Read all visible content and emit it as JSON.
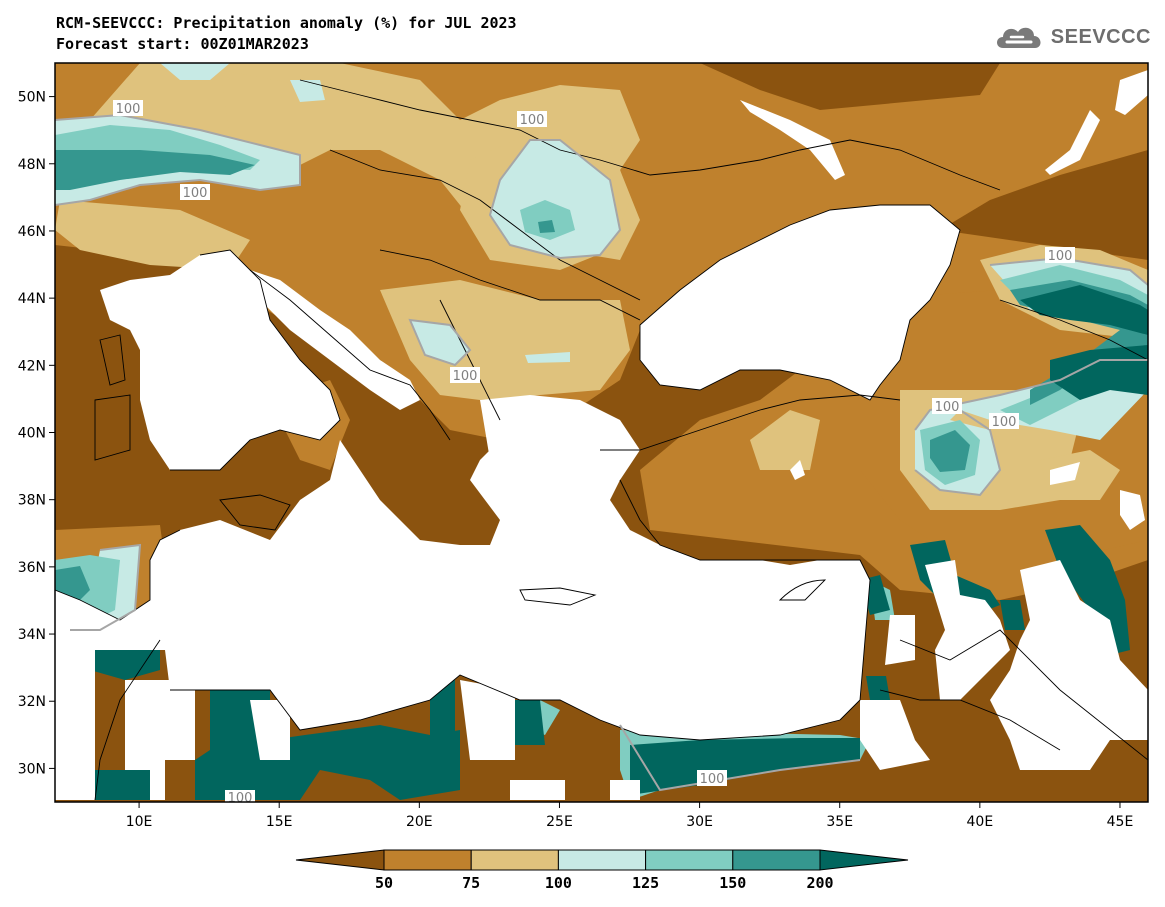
{
  "header": {
    "title": "RCM-SEEVCCC: Precipitation anomaly (%) for JUL 2023",
    "subtitle": "Forecast start: 00Z01MAR2023",
    "logo_text": "SEEVCCC",
    "logo_icon": "cloud-icon"
  },
  "chart_data": {
    "type": "heatmap",
    "variable": "Precipitation anomaly (%)",
    "lon_range": [
      7,
      46
    ],
    "lat_range": [
      29,
      51
    ],
    "lon_ticks": [
      "10E",
      "15E",
      "20E",
      "25E",
      "30E",
      "35E",
      "40E",
      "45E"
    ],
    "lat_ticks": [
      "50N",
      "48N",
      "46N",
      "44N",
      "42N",
      "40N",
      "38N",
      "36N",
      "34N",
      "32N",
      "30N"
    ],
    "contour_labels": [
      "100",
      "100",
      "100",
      "100",
      "100",
      "100",
      "100",
      "100",
      "100"
    ],
    "colorbar": {
      "labels": [
        "50",
        "75",
        "100",
        "125",
        "150",
        "200"
      ],
      "colors": [
        "#8b530f",
        "#bf812d",
        "#dfc27d",
        "#c7eae5",
        "#80cdc1",
        "#35978f",
        "#01665e"
      ],
      "extend": "both"
    }
  },
  "colors": {
    "lt50": "#8b530f",
    "b50_75": "#bf812d",
    "b75_100": "#dfc27d",
    "b100_125": "#c7eae5",
    "b125_150": "#80cdc1",
    "b150_200": "#35978f",
    "gt200": "#01665e",
    "sea": "#ffffff",
    "contour": "#a6a6a6"
  }
}
